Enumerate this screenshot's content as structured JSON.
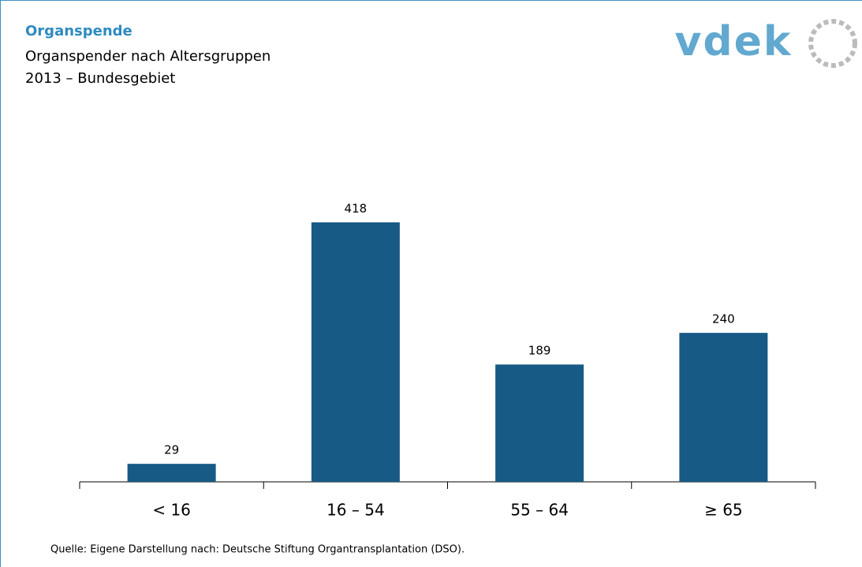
{
  "chart_data": {
    "type": "bar",
    "title": "Organspende",
    "subtitle": [
      "Organspender nach Altersgruppen",
      "2013 – Bundesgebiet"
    ],
    "logo": "vdek",
    "categories": [
      "< 16",
      "16 – 54",
      "55 – 64",
      "≥ 65"
    ],
    "values": [
      29,
      418,
      189,
      240
    ],
    "color": "#175a85",
    "source": "Quelle: Eigene Darstellung nach: Deutsche Stiftung Organtransplantation (DSO)."
  }
}
